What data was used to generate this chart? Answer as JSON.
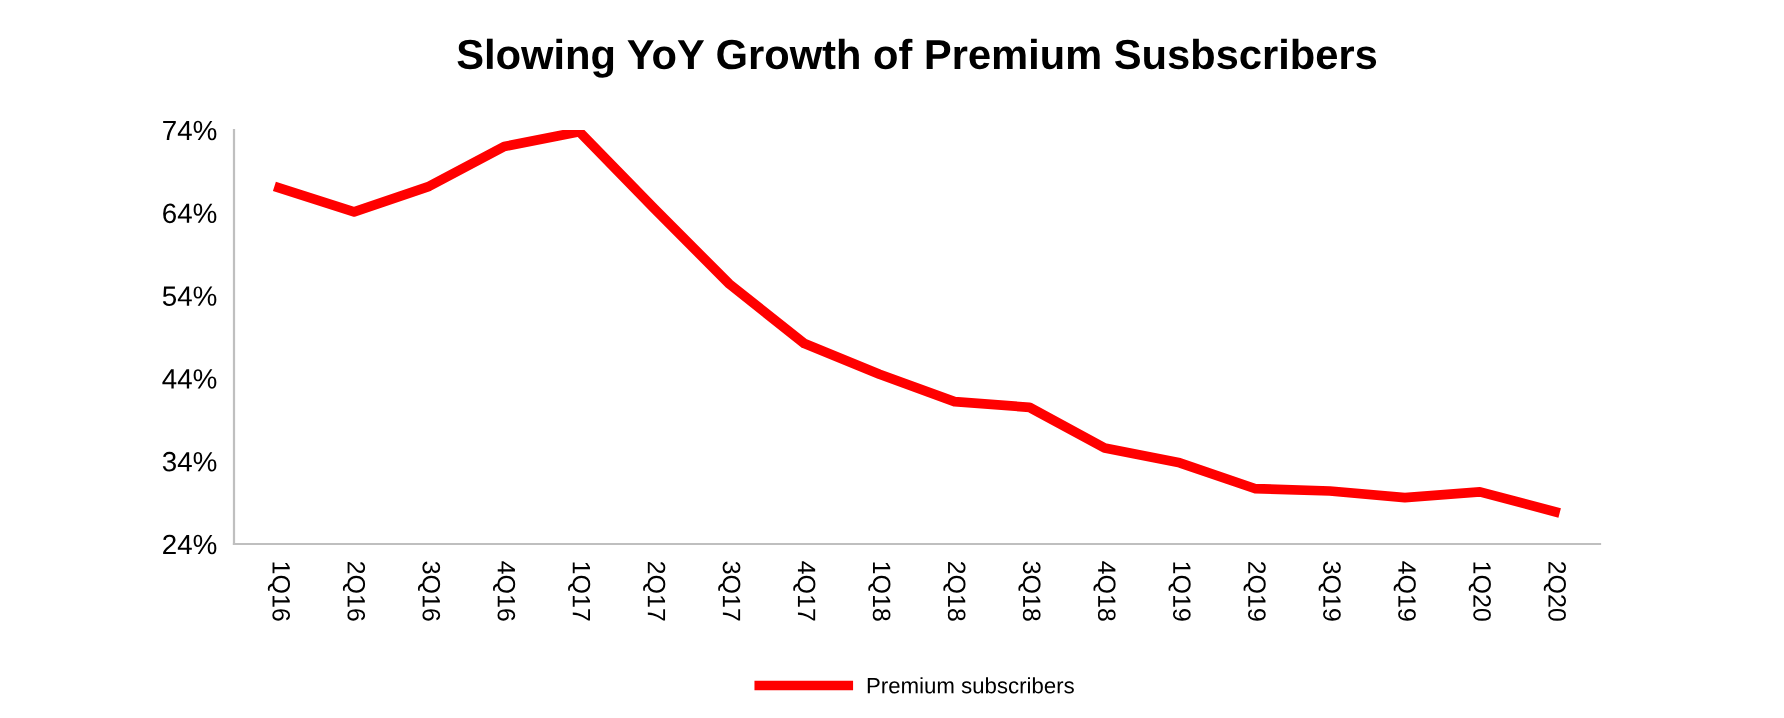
{
  "chart_data": {
    "type": "line",
    "title": "Slowing YoY Growth of Premium Susbscribers",
    "categories": [
      "1Q16",
      "2Q16",
      "3Q16",
      "4Q16",
      "1Q17",
      "2Q17",
      "3Q17",
      "4Q17",
      "1Q18",
      "2Q18",
      "3Q18",
      "4Q18",
      "1Q19",
      "2Q19",
      "3Q19",
      "4Q19",
      "1Q20",
      "2Q20"
    ],
    "series": [
      {
        "name": "Premium subscribers",
        "color": "#ff0000",
        "values": [
          67.0,
          64.1,
          67.2,
          72.0,
          73.8,
          64.5,
          55.4,
          48.2,
          44.5,
          41.2,
          40.5,
          35.6,
          33.8,
          30.7,
          30.4,
          29.6,
          30.3,
          27.9
        ]
      }
    ],
    "ylim": [
      24,
      74
    ],
    "yticks": [
      {
        "value": 24,
        "label": "24%"
      },
      {
        "value": 34,
        "label": "34%"
      },
      {
        "value": 44,
        "label": "44%"
      },
      {
        "value": 54,
        "label": "54%"
      },
      {
        "value": 64,
        "label": "64%"
      },
      {
        "value": 74,
        "label": "74%"
      }
    ],
    "grid": false,
    "legend": "bottom",
    "marker": "none",
    "line_style": "solid"
  }
}
